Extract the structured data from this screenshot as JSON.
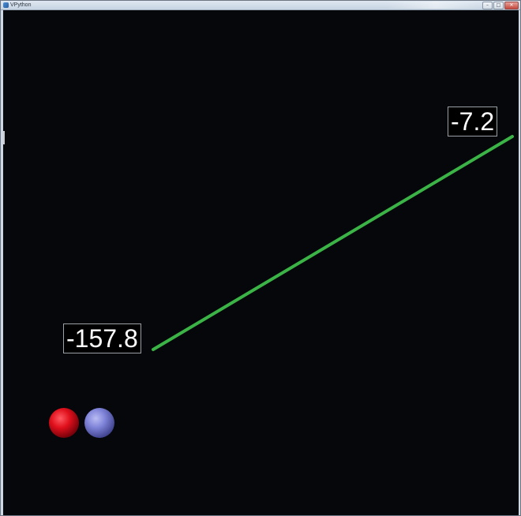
{
  "window": {
    "title": "VPython",
    "controls": [
      "–",
      "□",
      "✕"
    ]
  },
  "scene": {
    "line": {
      "color": "#3bb346",
      "start_value": "-157.8",
      "end_value": "-7.2"
    },
    "spheres": [
      {
        "name": "red-sphere",
        "color": "#e0101c"
      },
      {
        "name": "blue-sphere",
        "color": "#7f83d8"
      }
    ],
    "background": "#05070a"
  }
}
